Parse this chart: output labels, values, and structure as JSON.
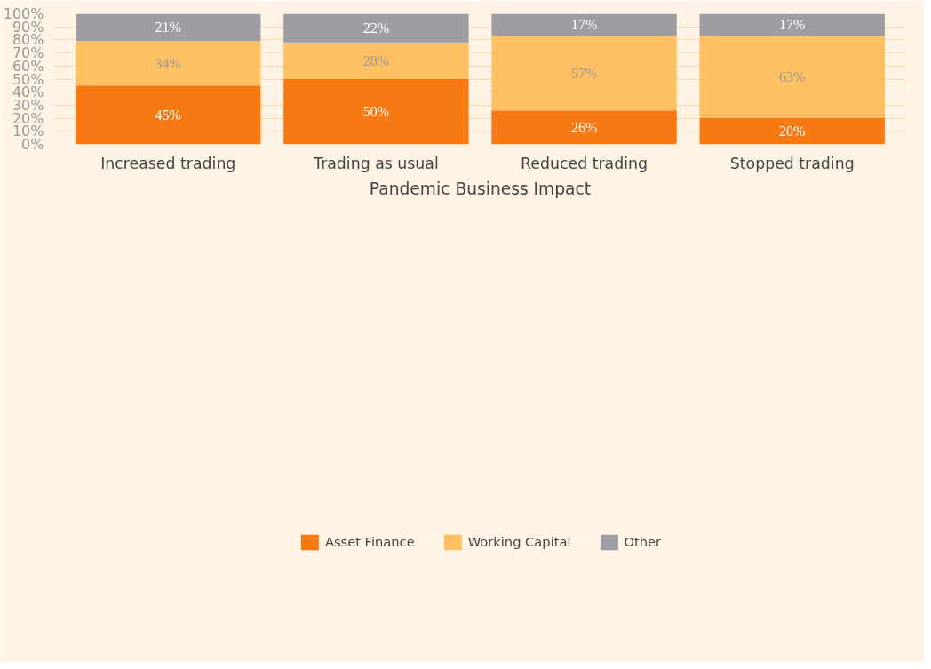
{
  "chart_data": {
    "type": "bar",
    "stacked": true,
    "xlabel": "Pandemic Business Impact",
    "categories": [
      "Increased trading",
      "Trading as usual",
      "Reduced trading",
      "Stopped trading"
    ],
    "series": [
      {
        "name": "Asset Finance",
        "color": "#f77914",
        "values": [
          45,
          50,
          26,
          20
        ],
        "value_labels": [
          "45%",
          "50%",
          "26%",
          "20%"
        ]
      },
      {
        "name": "Working Capital",
        "color": "#ffbf63",
        "values": [
          34,
          28,
          57,
          63
        ],
        "value_labels": [
          "34%",
          "28%",
          "57%",
          "63%"
        ]
      },
      {
        "name": "Other",
        "color": "#9e9ea2",
        "values": [
          21,
          22,
          17,
          17
        ],
        "value_labels": [
          "21%",
          "22%",
          "17%",
          "17%"
        ]
      }
    ],
    "ylim": [
      0,
      100
    ],
    "yticks": [
      {
        "value": 0,
        "label": "0%"
      },
      {
        "value": 10,
        "label": "10%"
      },
      {
        "value": 20,
        "label": "20%"
      },
      {
        "value": 30,
        "label": "30%"
      },
      {
        "value": 40,
        "label": "40%"
      },
      {
        "value": 50,
        "label": "50%"
      },
      {
        "value": 60,
        "label": "60%"
      },
      {
        "value": 70,
        "label": "70%"
      },
      {
        "value": 80,
        "label": "80%"
      },
      {
        "value": 90,
        "label": "90%"
      },
      {
        "value": 100,
        "label": "100%"
      }
    ],
    "grid": "y",
    "legend": "bottom"
  }
}
